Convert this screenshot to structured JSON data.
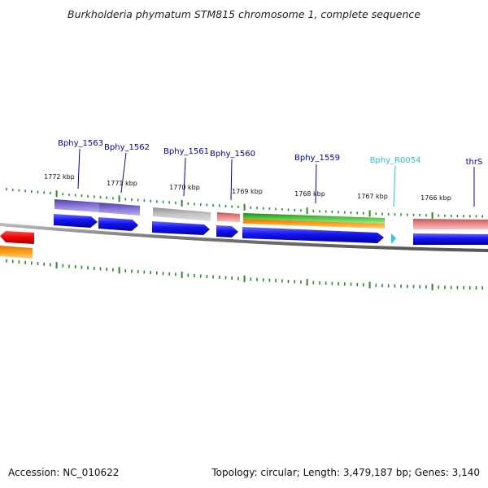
{
  "title": "Burkholderia phymatum STM815 chromosome 1, complete sequence",
  "accession": "Accession: NC_010622",
  "topology": "Topology: circular; Length: 3,479,187 bp; Genes: 3,140",
  "ruler_labels": [
    "1772 kbp",
    "1771 kbp",
    "1770 kbp",
    "1769 kbp",
    "1768 kbp",
    "1767 kbp",
    "1766 kbp"
  ],
  "genes": [
    {
      "name": "Bphy_1563",
      "color": "#0000aa"
    },
    {
      "name": "Bphy_1562",
      "color": "#0000aa"
    },
    {
      "name": "Bphy_1561",
      "color": "#0000aa"
    },
    {
      "name": "Bphy_1560",
      "color": "#0000aa"
    },
    {
      "name": "Bphy_1559",
      "color": "#0000aa"
    },
    {
      "name": "Bphy_R0054",
      "color": "#33bbdd"
    },
    {
      "name": "thrS",
      "color": "#0000aa"
    }
  ],
  "colors": {
    "cds": "#1010e8",
    "rna": "#30c8e8",
    "tick": "#2a8a2a",
    "backbone": "#888888",
    "purple": "#7060c8",
    "gray": "#b8b8b8",
    "pink": "#e88888",
    "green": "#44bb33",
    "orange": "#ff9900",
    "red": "#ee1111"
  }
}
